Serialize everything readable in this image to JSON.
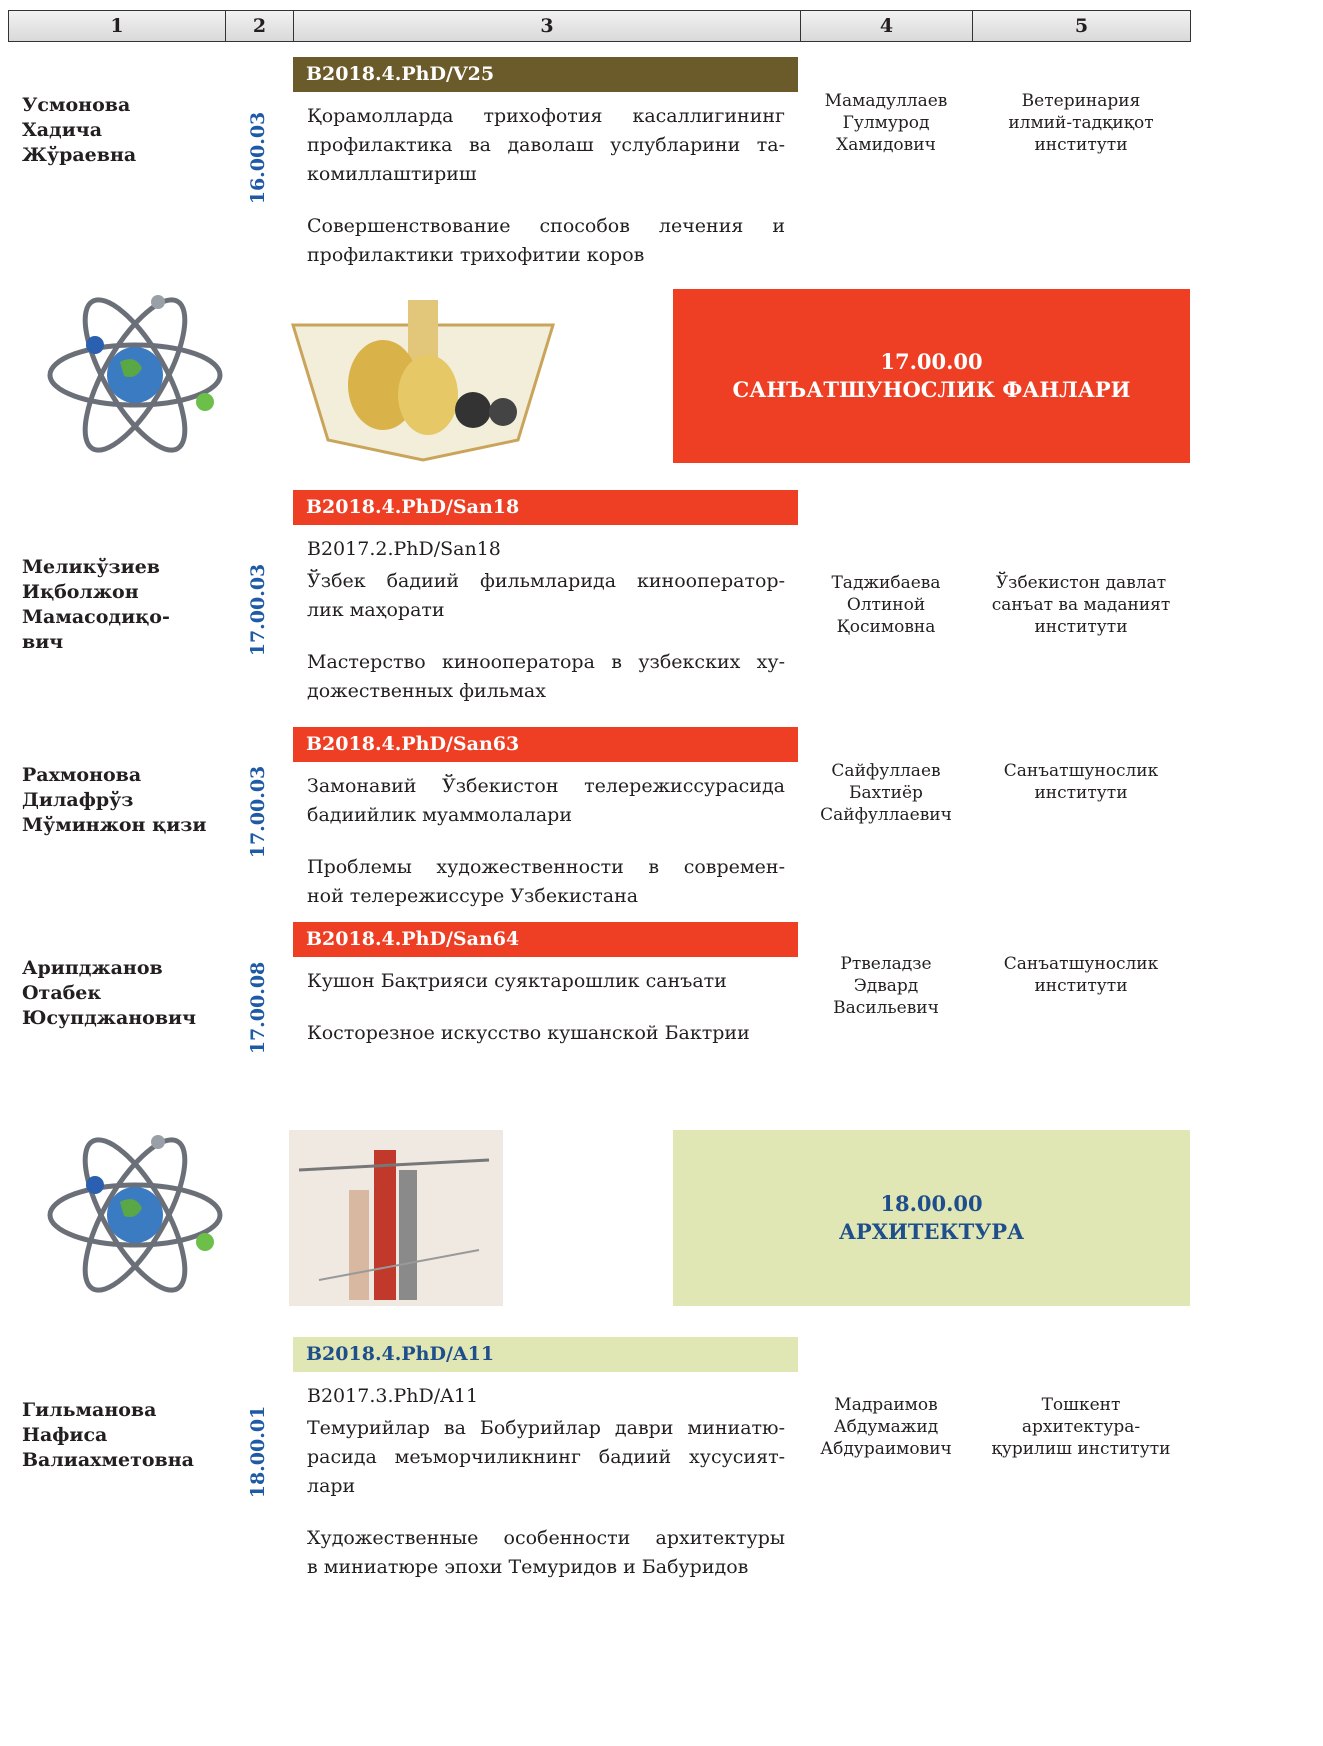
{
  "header": [
    "1",
    "2",
    "3",
    "4",
    "5"
  ],
  "entries": [
    {
      "name": [
        "Усмонова",
        "Хадича",
        "Жўраевна"
      ],
      "specialty": "16.00.03",
      "code": "B2018.4.PhD/V25",
      "title_uz": [
        "Қорамолларда трихофотия касаллигининг",
        "профилактика ва даволаш услубларини та-",
        "комиллаштириш"
      ],
      "title_ru": [
        "Совершенствование способов лечения и",
        "профилактики трихофитии коров"
      ],
      "supervisor": [
        "Мамадуллаев",
        "Гулмурод",
        "Хамидович"
      ],
      "institution": [
        "Ветеринария",
        "илмий-тадқиқот",
        "институти"
      ]
    },
    {
      "name": [
        "Меликўзиев",
        "Иқболжон",
        "Мамасодиқо-",
        "вич"
      ],
      "specialty": "17.00.03",
      "code": "B2018.4.PhD/San18",
      "previous_code": "B2017.2.PhD/San18",
      "title_uz": [
        "Ўзбек бадиий фильмларида кинооператор-",
        "лик маҳорати"
      ],
      "title_ru": [
        "Мастерство кинооператора в узбекских ху-",
        "дожественных фильмах"
      ],
      "supervisor": [
        "Таджибаева",
        "Олтиной",
        "Қосимовна"
      ],
      "institution": [
        "Ўзбекистон давлат",
        "санъат ва маданият",
        "институти"
      ]
    },
    {
      "name": [
        "Рахмонова",
        "Дилафрўз",
        "Мўминжон қизи"
      ],
      "specialty": "17.00.03",
      "code": "B2018.4.PhD/San63",
      "title_uz": [
        "Замонавий Ўзбекистон телережиссурасида",
        "бадиийлик муаммолалари"
      ],
      "title_ru": [
        "Проблемы художественности в современ-",
        "ной телережиссуре Узбекистана"
      ],
      "supervisor": [
        "Сайфуллаев",
        "Бахтиёр",
        "Сайфуллаевич"
      ],
      "institution": [
        "Санъатшунослик",
        "институти"
      ]
    },
    {
      "name": [
        "Арипджанов",
        "Отабек",
        "Юсупджанович"
      ],
      "specialty": "17.00.08",
      "code": "B2018.4.PhD/San64",
      "title_uz": [
        "Кушон Бақтрияси суяктарошлик санъати"
      ],
      "title_ru": [
        "Косторезное искусство кушанской Бактрии"
      ],
      "supervisor": [
        "Ртвеладзе",
        "Эдвард",
        "Васильевич"
      ],
      "institution": [
        "Санъатшунослик",
        "институти"
      ]
    },
    {
      "name": [
        "Гильманова",
        "Нафиса",
        "Валиахметовна"
      ],
      "specialty": "18.00.01",
      "code": "B2018.4.PhD/A11",
      "previous_code": "B2017.3.PhD/A11",
      "title_uz": [
        "Темурийлар ва Бобурийлар даври миниатю-",
        "расида меъморчиликнинг бадиий хусусият-",
        "лари"
      ],
      "title_ru": [
        "Художественные особенности архитектуры",
        "в миниатюре эпохи Темуридов и Бабуридов"
      ],
      "supervisor": [
        "Мадраимов",
        "Абдумажид",
        "Абдураимович"
      ],
      "institution": [
        "Тошкент",
        "архитектура-",
        "қурилиш институти"
      ]
    }
  ],
  "sections": [
    {
      "code": "17.00.00",
      "title": "САНЪАТШУНОСЛИК ФАНЛАРИ"
    },
    {
      "code": "18.00.00",
      "title": "АРХИТЕКТУРА"
    }
  ]
}
